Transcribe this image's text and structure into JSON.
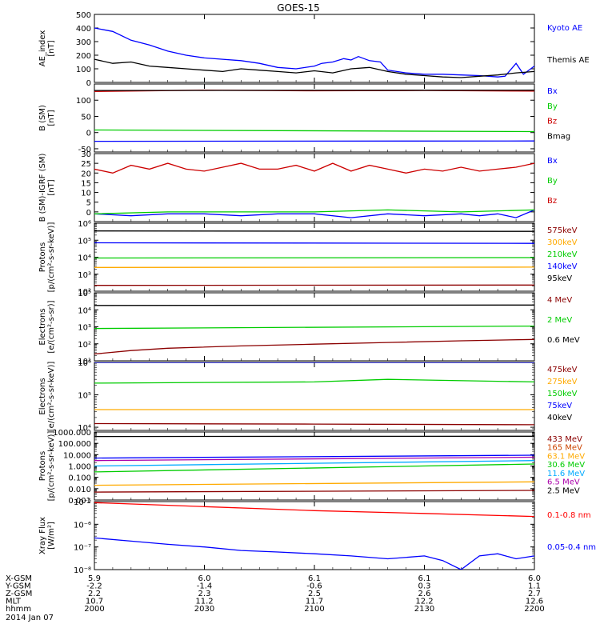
{
  "title": "GOES-15",
  "chart_data": {
    "type": "line",
    "title": "GOES-15",
    "x": {
      "ticks": [
        "2000",
        "2030",
        "2100",
        "2130",
        "2200"
      ],
      "range": [
        0,
        120
      ],
      "unit": "minutes from 2000"
    },
    "panels": [
      {
        "id": "ae",
        "ylabel": [
          "AE_index",
          "[nT]"
        ],
        "yscale": "linear",
        "ylim": [
          0,
          500
        ],
        "yticks": [
          "0",
          "100",
          "200",
          "300",
          "400",
          "500"
        ],
        "ytick_values": [
          0,
          100,
          200,
          300,
          400,
          500
        ],
        "series": [
          {
            "name": "Kyoto AE",
            "color": "#0000ff",
            "x": [
              0,
              5,
              10,
              15,
              20,
              25,
              30,
              35,
              40,
              45,
              50,
              55,
              60,
              62,
              65,
              68,
              70,
              72,
              75,
              78,
              80,
              85,
              90,
              95,
              100,
              105,
              110,
              112,
              115,
              117,
              120
            ],
            "y": [
              400,
              375,
              310,
              275,
              230,
              200,
              180,
              170,
              160,
              140,
              110,
              100,
              120,
              140,
              150,
              175,
              165,
              190,
              160,
              150,
              90,
              70,
              60,
              60,
              55,
              50,
              40,
              45,
              140,
              60,
              120
            ]
          },
          {
            "name": "Themis AE",
            "color": "#000000",
            "x": [
              0,
              5,
              10,
              15,
              20,
              25,
              30,
              35,
              40,
              45,
              50,
              55,
              60,
              65,
              70,
              75,
              80,
              85,
              90,
              95,
              100,
              105,
              110,
              115,
              120
            ],
            "y": [
              170,
              140,
              150,
              120,
              110,
              100,
              90,
              80,
              100,
              90,
              80,
              70,
              85,
              70,
              100,
              110,
              80,
              60,
              50,
              40,
              35,
              45,
              55,
              70,
              80
            ]
          }
        ]
      },
      {
        "id": "bsm",
        "ylabel": [
          "B (SM)",
          "[nT]"
        ],
        "yscale": "linear",
        "ylim": [
          -60,
          150
        ],
        "yticks": [
          "-50",
          "0",
          "50",
          "100"
        ],
        "ytick_values": [
          -50,
          0,
          50,
          100
        ],
        "series": [
          {
            "name": "Bx",
            "color": "#0000ff",
            "x": [
              0,
              120
            ],
            "y": [
              -27,
              -26
            ]
          },
          {
            "name": "By",
            "color": "#00cc00",
            "x": [
              0,
              120
            ],
            "y": [
              8,
              3
            ]
          },
          {
            "name": "Bz",
            "color": "#cc0000",
            "x": [
              0,
              30,
              60,
              90,
              120
            ],
            "y": [
              127,
              131,
              129,
              130,
              128
            ]
          },
          {
            "name": "Bmag",
            "color": "#000000",
            "x": [
              0,
              120
            ],
            "y": [
              130,
              131
            ]
          }
        ]
      },
      {
        "id": "bigrf",
        "ylabel": [
          "B (SM)-IGRF (SM)",
          "[nT]"
        ],
        "yscale": "linear",
        "ylim": [
          -5,
          30
        ],
        "yticks": [
          "0",
          "5",
          "10",
          "15",
          "20",
          "25",
          "30"
        ],
        "ytick_values": [
          0,
          5,
          10,
          15,
          20,
          25,
          30
        ],
        "series": [
          {
            "name": "Bx",
            "color": "#0000ff",
            "x": [
              0,
              10,
              20,
              30,
              40,
              50,
              60,
              70,
              80,
              90,
              100,
              105,
              110,
              115,
              120
            ],
            "y": [
              -1,
              -2,
              -1,
              -1,
              -2,
              -1,
              -1,
              -3,
              -1,
              -2,
              -1,
              -2,
              -1,
              -3,
              1
            ]
          },
          {
            "name": "By",
            "color": "#00cc00",
            "x": [
              0,
              20,
              40,
              60,
              80,
              100,
              120
            ],
            "y": [
              -1,
              0,
              0,
              0,
              1,
              0,
              1
            ]
          },
          {
            "name": "Bz",
            "color": "#cc0000",
            "x": [
              0,
              5,
              10,
              15,
              20,
              25,
              30,
              35,
              40,
              45,
              50,
              55,
              60,
              65,
              70,
              75,
              80,
              85,
              90,
              95,
              100,
              105,
              110,
              115,
              120
            ],
            "y": [
              22,
              20,
              24,
              22,
              25,
              22,
              21,
              23,
              25,
              22,
              22,
              24,
              21,
              25,
              21,
              24,
              22,
              20,
              22,
              21,
              23,
              21,
              22,
              23,
              25
            ]
          }
        ]
      },
      {
        "id": "protons1",
        "ylabel": [
          "Protons",
          "[p/(cm²-s-sr-keV)]"
        ],
        "yscale": "log",
        "ylim": [
          100,
          1000000
        ],
        "yticks": [
          "10²",
          "10³",
          "10⁴",
          "10⁵",
          "10⁶"
        ],
        "ytick_values": [
          100,
          1000,
          10000,
          100000,
          1000000
        ],
        "series": [
          {
            "name": "575keV",
            "color": "#000000",
            "x": [
              0,
              120
            ],
            "y": [
              350000,
              330000
            ]
          },
          {
            "name": "300keV",
            "color": "#0000ff",
            "x": [
              0,
              120
            ],
            "y": [
              70000,
              65000
            ]
          },
          {
            "name": "210keV",
            "color": "#00cc00",
            "x": [
              0,
              120
            ],
            "y": [
              9000,
              9500
            ]
          },
          {
            "name": "140keV",
            "color": "#ffaa00",
            "x": [
              0,
              120
            ],
            "y": [
              2500,
              2600
            ]
          },
          {
            "name": "95keV",
            "color": "#8b0000",
            "x": [
              0,
              120
            ],
            "y": [
              220,
              230
            ]
          }
        ]
      },
      {
        "id": "electrons1",
        "ylabel": [
          "Electrons",
          "[e/(cm²-s-sr)]"
        ],
        "yscale": "log",
        "ylim": [
          10,
          100000
        ],
        "yticks": [
          "10¹",
          "10²",
          "10³",
          "10⁴",
          "10⁵"
        ],
        "ytick_values": [
          10,
          100,
          1000,
          10000,
          100000
        ],
        "series": [
          {
            "name": "4 MeV",
            "color": "#8b0000",
            "x": [
              0,
              10,
              20,
              40,
              60,
              80,
              100,
              120
            ],
            "y": [
              25,
              40,
              55,
              75,
              95,
              120,
              150,
              180
            ]
          },
          {
            "name": "2 MeV",
            "color": "#00cc00",
            "x": [
              0,
              120
            ],
            "y": [
              800,
              1100
            ]
          },
          {
            "name": "0.6 MeV",
            "color": "#000000",
            "x": [
              0,
              120
            ],
            "y": [
              18000,
              19000
            ]
          }
        ]
      },
      {
        "id": "electrons2",
        "ylabel": [
          "Electrons",
          "[e/(cm²-s-sr-keV)]"
        ],
        "yscale": "log",
        "ylim": [
          8000,
          1000000
        ],
        "yticks": [
          "10⁴",
          "10⁵",
          "10⁶"
        ],
        "ytick_values": [
          10000,
          100000,
          1000000
        ],
        "series": [
          {
            "name": "475keV",
            "color": "#000000",
            "x": [
              0,
              120
            ],
            "y": [
              1000000,
              1000000
            ]
          },
          {
            "name": "275keV",
            "color": "#00cc00",
            "x": [
              0,
              60,
              80,
              120
            ],
            "y": [
              230000,
              250000,
              300000,
              250000
            ]
          },
          {
            "name": "150keV",
            "color": "#ffaa00",
            "x": [
              0,
              120
            ],
            "y": [
              35000,
              35000
            ]
          },
          {
            "name": "75keV",
            "color": "#0000ff",
            "x": [
              0,
              120
            ],
            "y": [
              1000000,
              1000000
            ]
          },
          {
            "name": "40keV",
            "color": "#8b0000",
            "x": [
              0,
              60,
              120
            ],
            "y": [
              13000,
              12500,
              12000
            ]
          }
        ]
      },
      {
        "id": "protons2",
        "ylabel": [
          "Protons",
          "[p/(cm²-s-sr-keV)]"
        ],
        "yscale": "log",
        "ylim": [
          0.001,
          1000
        ],
        "yticks": [
          "0.001",
          "0.010",
          "0.100",
          "1.000",
          "10.000",
          "100.000",
          "1000.000"
        ],
        "ytick_values": [
          0.001,
          0.01,
          0.1,
          1,
          10,
          100,
          1000
        ],
        "series": [
          {
            "name": "433 MeV",
            "color": "#000000",
            "x": [
              0,
              120
            ],
            "y": [
              400,
              420
            ]
          },
          {
            "name": "165 MeV",
            "color": "#8b0000",
            "x": [
              0,
              120
            ],
            "y": [
              0.005,
              0.007
            ]
          },
          {
            "name": "63.1 MeV",
            "color": "#ffaa00",
            "x": [
              0,
              120
            ],
            "y": [
              0.02,
              0.04
            ]
          },
          {
            "name": "30.6 MeV",
            "color": "#00cc00",
            "x": [
              0,
              120
            ],
            "y": [
              0.3,
              1.5
            ]
          },
          {
            "name": "11.6 MeV",
            "color": "#00aaff",
            "x": [
              0,
              120
            ],
            "y": [
              1.0,
              3.0
            ]
          },
          {
            "name": "6.5 MeV",
            "color": "#aa00aa",
            "x": [
              0,
              120
            ],
            "y": [
              3.0,
              6.0
            ]
          },
          {
            "name": "2.5 MeV",
            "color": "#0000ff",
            "x": [
              0,
              120
            ],
            "y": [
              5.0,
              9.0
            ]
          }
        ]
      },
      {
        "id": "xray",
        "ylabel": [
          "Xray Flux",
          "[W/m²]"
        ],
        "yscale": "log",
        "ylim": [
          1e-08,
          1e-05
        ],
        "yticks": [
          "10⁻⁸",
          "10⁻⁷",
          "10⁻⁶",
          "10⁻⁵"
        ],
        "ytick_values": [
          1e-08,
          1e-07,
          1e-06,
          1e-05
        ],
        "series": [
          {
            "name": "0.1-0.8 nm",
            "color": "#ff0000",
            "x": [
              0,
              30,
              60,
              90,
              120
            ],
            "y": [
              9e-06,
              6e-06,
              4e-06,
              3e-06,
              2.2e-06
            ]
          },
          {
            "name": "0.05-0.4 nm",
            "color": "#0000ff",
            "x": [
              0,
              10,
              20,
              30,
              40,
              50,
              60,
              70,
              80,
              90,
              95,
              100,
              105,
              110,
              115,
              120
            ],
            "y": [
              2.5e-07,
              1.8e-07,
              1.3e-07,
              1e-07,
              7e-08,
              6e-08,
              5e-08,
              4e-08,
              3e-08,
              4e-08,
              2.5e-08,
              1e-08,
              4e-08,
              5e-08,
              3e-08,
              4e-08
            ]
          }
        ]
      }
    ]
  },
  "legends": [
    [
      {
        "label": "Kyoto AE",
        "color": "#0000ff"
      },
      {
        "label": "Themis AE",
        "color": "#000000"
      }
    ],
    [
      {
        "label": "Bx",
        "color": "#0000ff"
      },
      {
        "label": "By",
        "color": "#00cc00"
      },
      {
        "label": "Bz",
        "color": "#cc0000"
      },
      {
        "label": "Bmag",
        "color": "#000000"
      }
    ],
    [
      {
        "label": "Bx",
        "color": "#0000ff"
      },
      {
        "label": "By",
        "color": "#00cc00"
      },
      {
        "label": "Bz",
        "color": "#cc0000"
      }
    ],
    [
      {
        "label": "575keV",
        "color": "#8b0000"
      },
      {
        "label": "300keV",
        "color": "#ffaa00"
      },
      {
        "label": "210keV",
        "color": "#00cc00"
      },
      {
        "label": "140keV",
        "color": "#0000ff"
      },
      {
        "label": "95keV",
        "color": "#000000"
      }
    ],
    [
      {
        "label": "4 MeV",
        "color": "#8b0000"
      },
      {
        "label": "2 MeV",
        "color": "#00cc00"
      },
      {
        "label": "0.6 MeV",
        "color": "#000000"
      }
    ],
    [
      {
        "label": "475keV",
        "color": "#8b0000"
      },
      {
        "label": "275keV",
        "color": "#ffaa00"
      },
      {
        "label": "150keV",
        "color": "#00cc00"
      },
      {
        "label": "75keV",
        "color": "#0000ff"
      },
      {
        "label": "40keV",
        "color": "#000000"
      }
    ],
    [
      {
        "label": "433 MeV",
        "color": "#8b0000"
      },
      {
        "label": "165 MeV",
        "color": "#cc4400"
      },
      {
        "label": "63.1 MeV",
        "color": "#ffaa00"
      },
      {
        "label": "30.6 MeV",
        "color": "#00cc00"
      },
      {
        "label": "11.6 MeV",
        "color": "#00aaff"
      },
      {
        "label": "6.5 MeV",
        "color": "#aa00aa"
      },
      {
        "label": "2.5 MeV",
        "color": "#000000"
      }
    ],
    [
      {
        "label": "0.1-0.8 nm",
        "color": "#ff0000"
      },
      {
        "label": "0.05-0.4 nm",
        "color": "#0000ff"
      }
    ]
  ],
  "orbit_table": {
    "row_labels": [
      "X-GSM",
      "Y-GSM",
      "Z-GSM",
      "MLT",
      "hhmm"
    ],
    "columns": [
      [
        "5.9",
        "-2.2",
        "2.2",
        "10.7",
        "2000"
      ],
      [
        "6.0",
        "-1.4",
        "2.3",
        "11.2",
        "2030"
      ],
      [
        "6.1",
        "-0.6",
        "2.5",
        "11.7",
        "2100"
      ],
      [
        "6.1",
        "0.3",
        "2.6",
        "12.2",
        "2130"
      ],
      [
        "6.0",
        "1.1",
        "2.7",
        "12.6",
        "2200"
      ]
    ],
    "date": "2014 Jan 07"
  }
}
